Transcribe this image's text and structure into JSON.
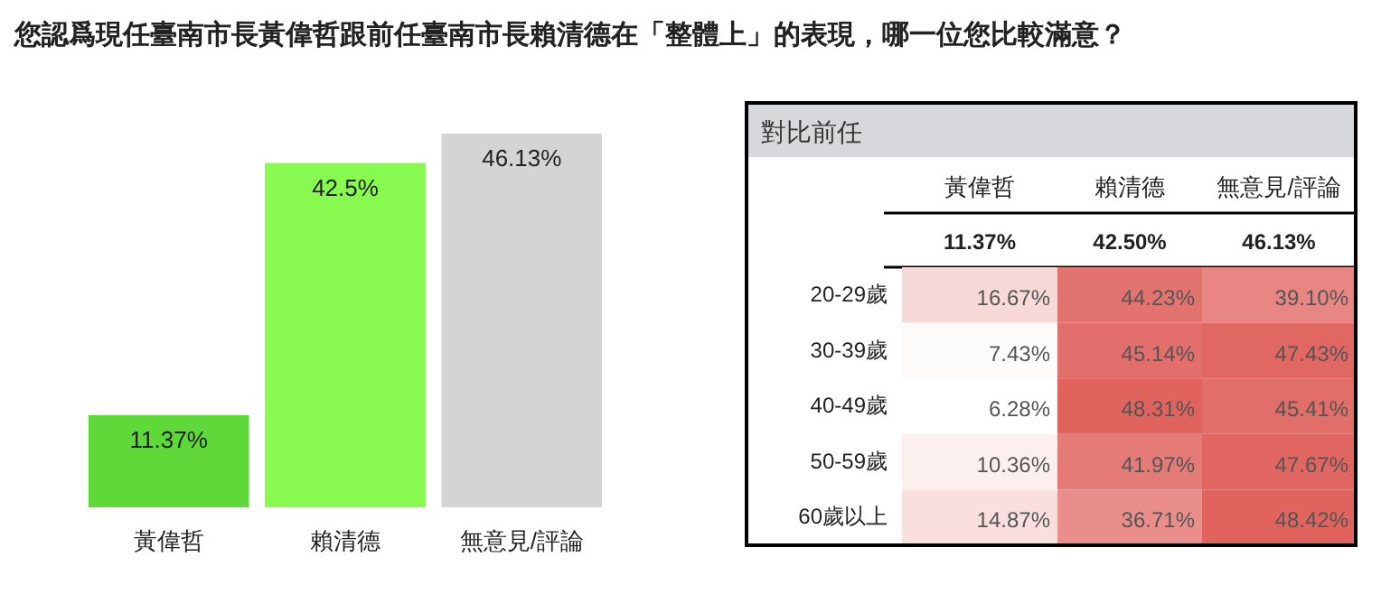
{
  "chart_data": [
    {
      "type": "bar",
      "title": "您認爲現任臺南市長黃偉哲跟前任臺南市長賴清德在「整體上」的表現，哪一位您比較滿意？",
      "categories": [
        "黃偉哲",
        "賴清德",
        "無意見/評論"
      ],
      "values": [
        11.37,
        42.5,
        46.13
      ],
      "colors": [
        "#5fd93a",
        "#88f94e",
        "#d4d4d4"
      ],
      "value_labels": [
        "11.37%",
        "42.5%",
        "46.13%"
      ]
    },
    {
      "type": "heatmap",
      "title": "對比前任",
      "categories": [
        "黃偉哲",
        "賴清德",
        "無意見/評論"
      ],
      "y_categories": [
        "20-29歲",
        "30-39歲",
        "40-49歲",
        "50-59歲",
        "60歲以上"
      ],
      "cells": [
        [
          16.67,
          44.23,
          39.1
        ],
        [
          7.43,
          45.14,
          47.43
        ],
        [
          6.28,
          48.31,
          45.41
        ],
        [
          10.36,
          41.97,
          47.67
        ],
        [
          14.87,
          36.71,
          48.42
        ]
      ],
      "cell_labels": [
        [
          "16.67%",
          "44.23%",
          "39.10%"
        ],
        [
          "7.43%",
          "45.14%",
          "47.43%"
        ],
        [
          "6.28%",
          "48.31%",
          "45.41%"
        ],
        [
          "10.36%",
          "41.97%",
          "47.67%"
        ],
        [
          "14.87%",
          "36.71%",
          "48.42%"
        ]
      ],
      "annotations": [
        "11.37%",
        "42.50%",
        "46.13%"
      ]
    }
  ]
}
